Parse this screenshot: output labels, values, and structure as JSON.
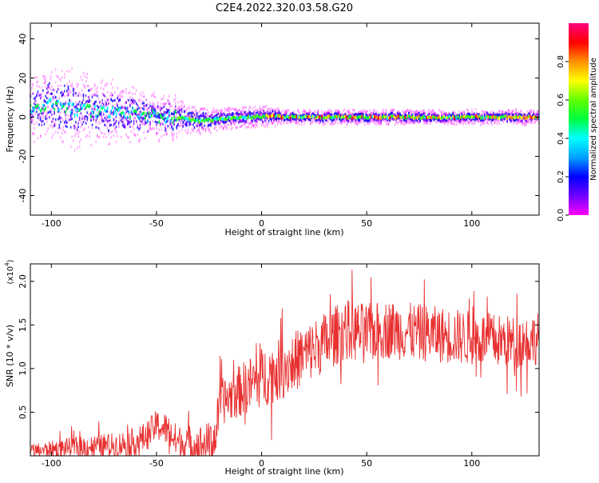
{
  "title": "C2E4.2022.320.03.58.G20",
  "chart_data": [
    {
      "type": "heatmap",
      "xlabel": "Height of straight line (km)",
      "ylabel": "Frequency (Hz)",
      "xlim": [
        -110,
        132
      ],
      "ylim": [
        -50,
        48
      ],
      "xticks": [
        -100,
        -50,
        0,
        50,
        100
      ],
      "yticks": [
        -40,
        -20,
        0,
        20,
        40
      ],
      "ridge": {
        "x": [
          -110,
          -100,
          -90,
          -80,
          -70,
          -60,
          -50,
          -40,
          -30,
          -20,
          -10,
          0,
          5,
          10,
          20,
          40,
          60,
          80,
          100,
          120,
          132
        ],
        "center_freq": [
          5,
          6,
          4,
          3,
          2,
          2,
          0,
          0,
          -2,
          -1,
          0,
          0,
          1,
          0,
          0,
          0,
          0,
          0,
          0,
          0,
          0
        ],
        "spread": [
          9,
          10,
          11,
          9,
          8,
          7,
          6,
          5,
          4,
          3,
          3,
          3,
          3,
          2,
          2,
          2,
          2,
          2,
          2,
          2,
          2
        ]
      },
      "colorbar": {
        "label": "Normalized spectral amplitude",
        "range": [
          0.0,
          1.0
        ],
        "ticks": [
          0.0,
          0.2,
          0.4,
          0.6,
          0.8
        ],
        "colormap": [
          "#ff00ff",
          "#7000ff",
          "#0000ff",
          "#00a0ff",
          "#00ffff",
          "#00ff40",
          "#60ff00",
          "#ffff00",
          "#ff9000",
          "#ff0000",
          "#ff0080"
        ]
      },
      "grid": false
    },
    {
      "type": "line",
      "xlabel": "Height of straight line (km)",
      "ylabel": "SNR (10 * v/v)",
      "yscale_label": "(x10",
      "yscale_exp": "4",
      "yscale_close": ")",
      "xlim": [
        -110,
        132
      ],
      "ylim": [
        0.0,
        2.2
      ],
      "xticks": [
        -100,
        -50,
        0,
        50,
        100
      ],
      "yticks": [
        0.5,
        1.0,
        1.5,
        2.0
      ],
      "ytick_labels": [
        "0.5",
        "1.0",
        "1.5",
        "2.0"
      ],
      "series_color": "#e83030",
      "trend": {
        "x": [
          -110,
          -90,
          -70,
          -60,
          -55,
          -50,
          -45,
          -40,
          -30,
          -25,
          -22,
          -20,
          -10,
          0,
          10,
          20,
          30,
          40,
          50,
          60,
          80,
          100,
          120,
          132
        ],
        "y": [
          0.05,
          0.1,
          0.12,
          0.16,
          0.22,
          0.35,
          0.3,
          0.15,
          0.12,
          0.15,
          0.2,
          0.6,
          0.75,
          0.9,
          1.0,
          1.15,
          1.3,
          1.45,
          1.4,
          1.45,
          1.4,
          1.35,
          1.3,
          1.35
        ]
      },
      "noise": {
        "x": [
          -110,
          -50,
          -22,
          0,
          40,
          132
        ],
        "amp": [
          0.08,
          0.18,
          0.25,
          0.35,
          0.35,
          0.3
        ]
      },
      "samples": 1100,
      "grid": false
    }
  ]
}
